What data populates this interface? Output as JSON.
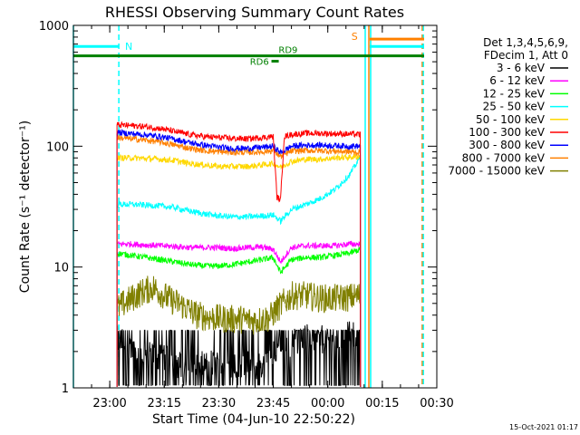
{
  "chart_data": {
    "type": "line",
    "title": "RHESSI Observing Summary Count Rates",
    "xlabel": "Start Time (04-Jun-10 22:50:22)",
    "ylabel": "Count Rate (s⁻¹ detector⁻¹)",
    "yscale": "log",
    "ylim": [
      1,
      1000
    ],
    "xlim": [
      "22:50",
      "00:30"
    ],
    "x_unit": "minutes after 22:50:22",
    "x_ticks": [
      "23:00",
      "23:15",
      "23:30",
      "23:45",
      "00:00",
      "00:15",
      "00:30"
    ],
    "y_ticks": [
      "1",
      "10",
      "100",
      "1000"
    ],
    "legend_header": [
      "Det 1,3,4,5,6,9,",
      "FDecim 1, Att 0"
    ],
    "legend_position": "right",
    "timestamp": "15-Oct-2021 01:17",
    "series": [
      {
        "name": "3 - 6 keV",
        "color": "#000000",
        "x": [
          12,
          14,
          18,
          22,
          26,
          30,
          34,
          38,
          42,
          46,
          50,
          54,
          56,
          60,
          64,
          68,
          72,
          76,
          79
        ],
        "values": [
          2.5,
          2.3,
          1.9,
          1.8,
          1.7,
          1.5,
          1.5,
          1.6,
          1.5,
          1.6,
          1.5,
          1.6,
          2.2,
          2.4,
          2.6,
          2.5,
          2.6,
          2.7,
          2.7
        ]
      },
      {
        "name": "6 - 12 keV",
        "color": "#ff00ff",
        "x": [
          12,
          16,
          20,
          24,
          28,
          32,
          36,
          40,
          44,
          48,
          52,
          55,
          57,
          60,
          64,
          68,
          72,
          76,
          79
        ],
        "values": [
          15.5,
          15.5,
          15.2,
          15,
          14.8,
          14.5,
          14.5,
          14.5,
          14.2,
          14.5,
          14.6,
          14,
          11,
          14.5,
          15,
          15,
          15,
          15.5,
          15.5
        ]
      },
      {
        "name": "12 - 25 keV",
        "color": "#00ff00",
        "x": [
          12,
          16,
          20,
          24,
          28,
          32,
          36,
          40,
          44,
          48,
          52,
          55,
          57,
          60,
          64,
          68,
          72,
          76,
          79
        ],
        "values": [
          13,
          12.5,
          12,
          11.5,
          11,
          10.5,
          10.2,
          10.2,
          10.5,
          11,
          11.5,
          12,
          9,
          11.5,
          12,
          12,
          12.5,
          13,
          14
        ]
      },
      {
        "name": "25 - 50 keV",
        "color": "#00ffff",
        "x": [
          12,
          16,
          20,
          24,
          28,
          32,
          36,
          40,
          44,
          48,
          52,
          55,
          57,
          60,
          64,
          68,
          72,
          76,
          79
        ],
        "values": [
          33,
          33,
          32.5,
          32,
          31,
          29,
          27.5,
          26.5,
          26,
          26,
          26.5,
          27,
          24,
          30,
          33,
          37,
          44,
          58,
          82
        ]
      },
      {
        "name": "50 - 100 keV",
        "color": "#ffd800",
        "x": [
          12,
          16,
          20,
          24,
          28,
          32,
          36,
          40,
          44,
          48,
          52,
          55,
          57,
          60,
          64,
          68,
          72,
          76,
          79
        ],
        "values": [
          80,
          80,
          79,
          78,
          76,
          72,
          70,
          68,
          68,
          68,
          70,
          72,
          67,
          75,
          78,
          78,
          80,
          81,
          82
        ]
      },
      {
        "name": "100 - 300 keV",
        "color": "#ff0000",
        "x": [
          12,
          16,
          20,
          24,
          28,
          32,
          36,
          40,
          44,
          48,
          52,
          55,
          56,
          57,
          58,
          60,
          64,
          68,
          72,
          76,
          79
        ],
        "values": [
          150,
          148,
          145,
          140,
          132,
          125,
          120,
          118,
          116,
          115,
          118,
          120,
          38,
          36,
          120,
          125,
          128,
          128,
          127,
          126,
          125
        ]
      },
      {
        "name": "300 - 800 keV",
        "color": "#0000ff",
        "x": [
          12,
          16,
          20,
          24,
          28,
          32,
          36,
          40,
          44,
          48,
          52,
          55,
          57,
          60,
          64,
          68,
          72,
          76,
          79
        ],
        "values": [
          130,
          127,
          124,
          120,
          114,
          107,
          102,
          98,
          96,
          96,
          98,
          100,
          88,
          100,
          102,
          102,
          101,
          100,
          100
        ]
      },
      {
        "name": "800 - 7000 keV",
        "color": "#ff8000",
        "x": [
          12,
          16,
          20,
          24,
          28,
          32,
          36,
          40,
          44,
          48,
          52,
          55,
          57,
          60,
          64,
          68,
          72,
          76,
          79
        ],
        "values": [
          118,
          115,
          112,
          108,
          102,
          96,
          92,
          90,
          89,
          89,
          90,
          92,
          82,
          91,
          92,
          92,
          91,
          90,
          88
        ]
      },
      {
        "name": "7000 - 15000 keV",
        "color": "#808000",
        "x": [
          12,
          14,
          18,
          22,
          26,
          30,
          34,
          38,
          42,
          46,
          50,
          54,
          56,
          60,
          64,
          68,
          72,
          76,
          79
        ],
        "values": [
          4.5,
          5,
          6,
          6.8,
          5.5,
          4.8,
          4,
          3.8,
          3.7,
          3.7,
          3.6,
          3.8,
          4.5,
          5.8,
          5.8,
          5.5,
          5.5,
          5.6,
          5.8
        ]
      }
    ],
    "annotations": [
      {
        "text": "N",
        "color": "#00ffff"
      },
      {
        "text": "S",
        "color": "#ff8000"
      },
      {
        "text": "RD6",
        "color": "#008000"
      },
      {
        "text": "RD9",
        "color": "#008000"
      }
    ],
    "segments": [
      {
        "color": "#00ffff",
        "x": [
          0,
          12.5
        ],
        "value": 670
      },
      {
        "color": "#00ffff",
        "x": [
          81.5,
          96.5
        ],
        "value": 670
      },
      {
        "color": "#ff8000",
        "x": [
          81.5,
          96.5
        ],
        "value": 770
      },
      {
        "color": "#008000",
        "x": [
          0,
          96.5
        ],
        "value": 560
      },
      {
        "color": "#008000",
        "x": [
          54.5,
          56.5
        ],
        "value": 505
      }
    ],
    "vlines": [
      {
        "color": "#00ffff",
        "x": 0,
        "style": "solid"
      },
      {
        "color": "#00ffff",
        "x": 12.5,
        "style": "dashed"
      },
      {
        "color": "#00ffff",
        "x": 80.3,
        "style": "solid"
      },
      {
        "color": "#ff8000",
        "x": 81.3,
        "style": "solid"
      },
      {
        "color": "#00ffff",
        "x": 81.8,
        "style": "solid"
      },
      {
        "color": "#ff8000",
        "x": 96,
        "style": "dashed"
      },
      {
        "color": "#00ffff",
        "x": 96.3,
        "style": "dashed"
      }
    ]
  }
}
